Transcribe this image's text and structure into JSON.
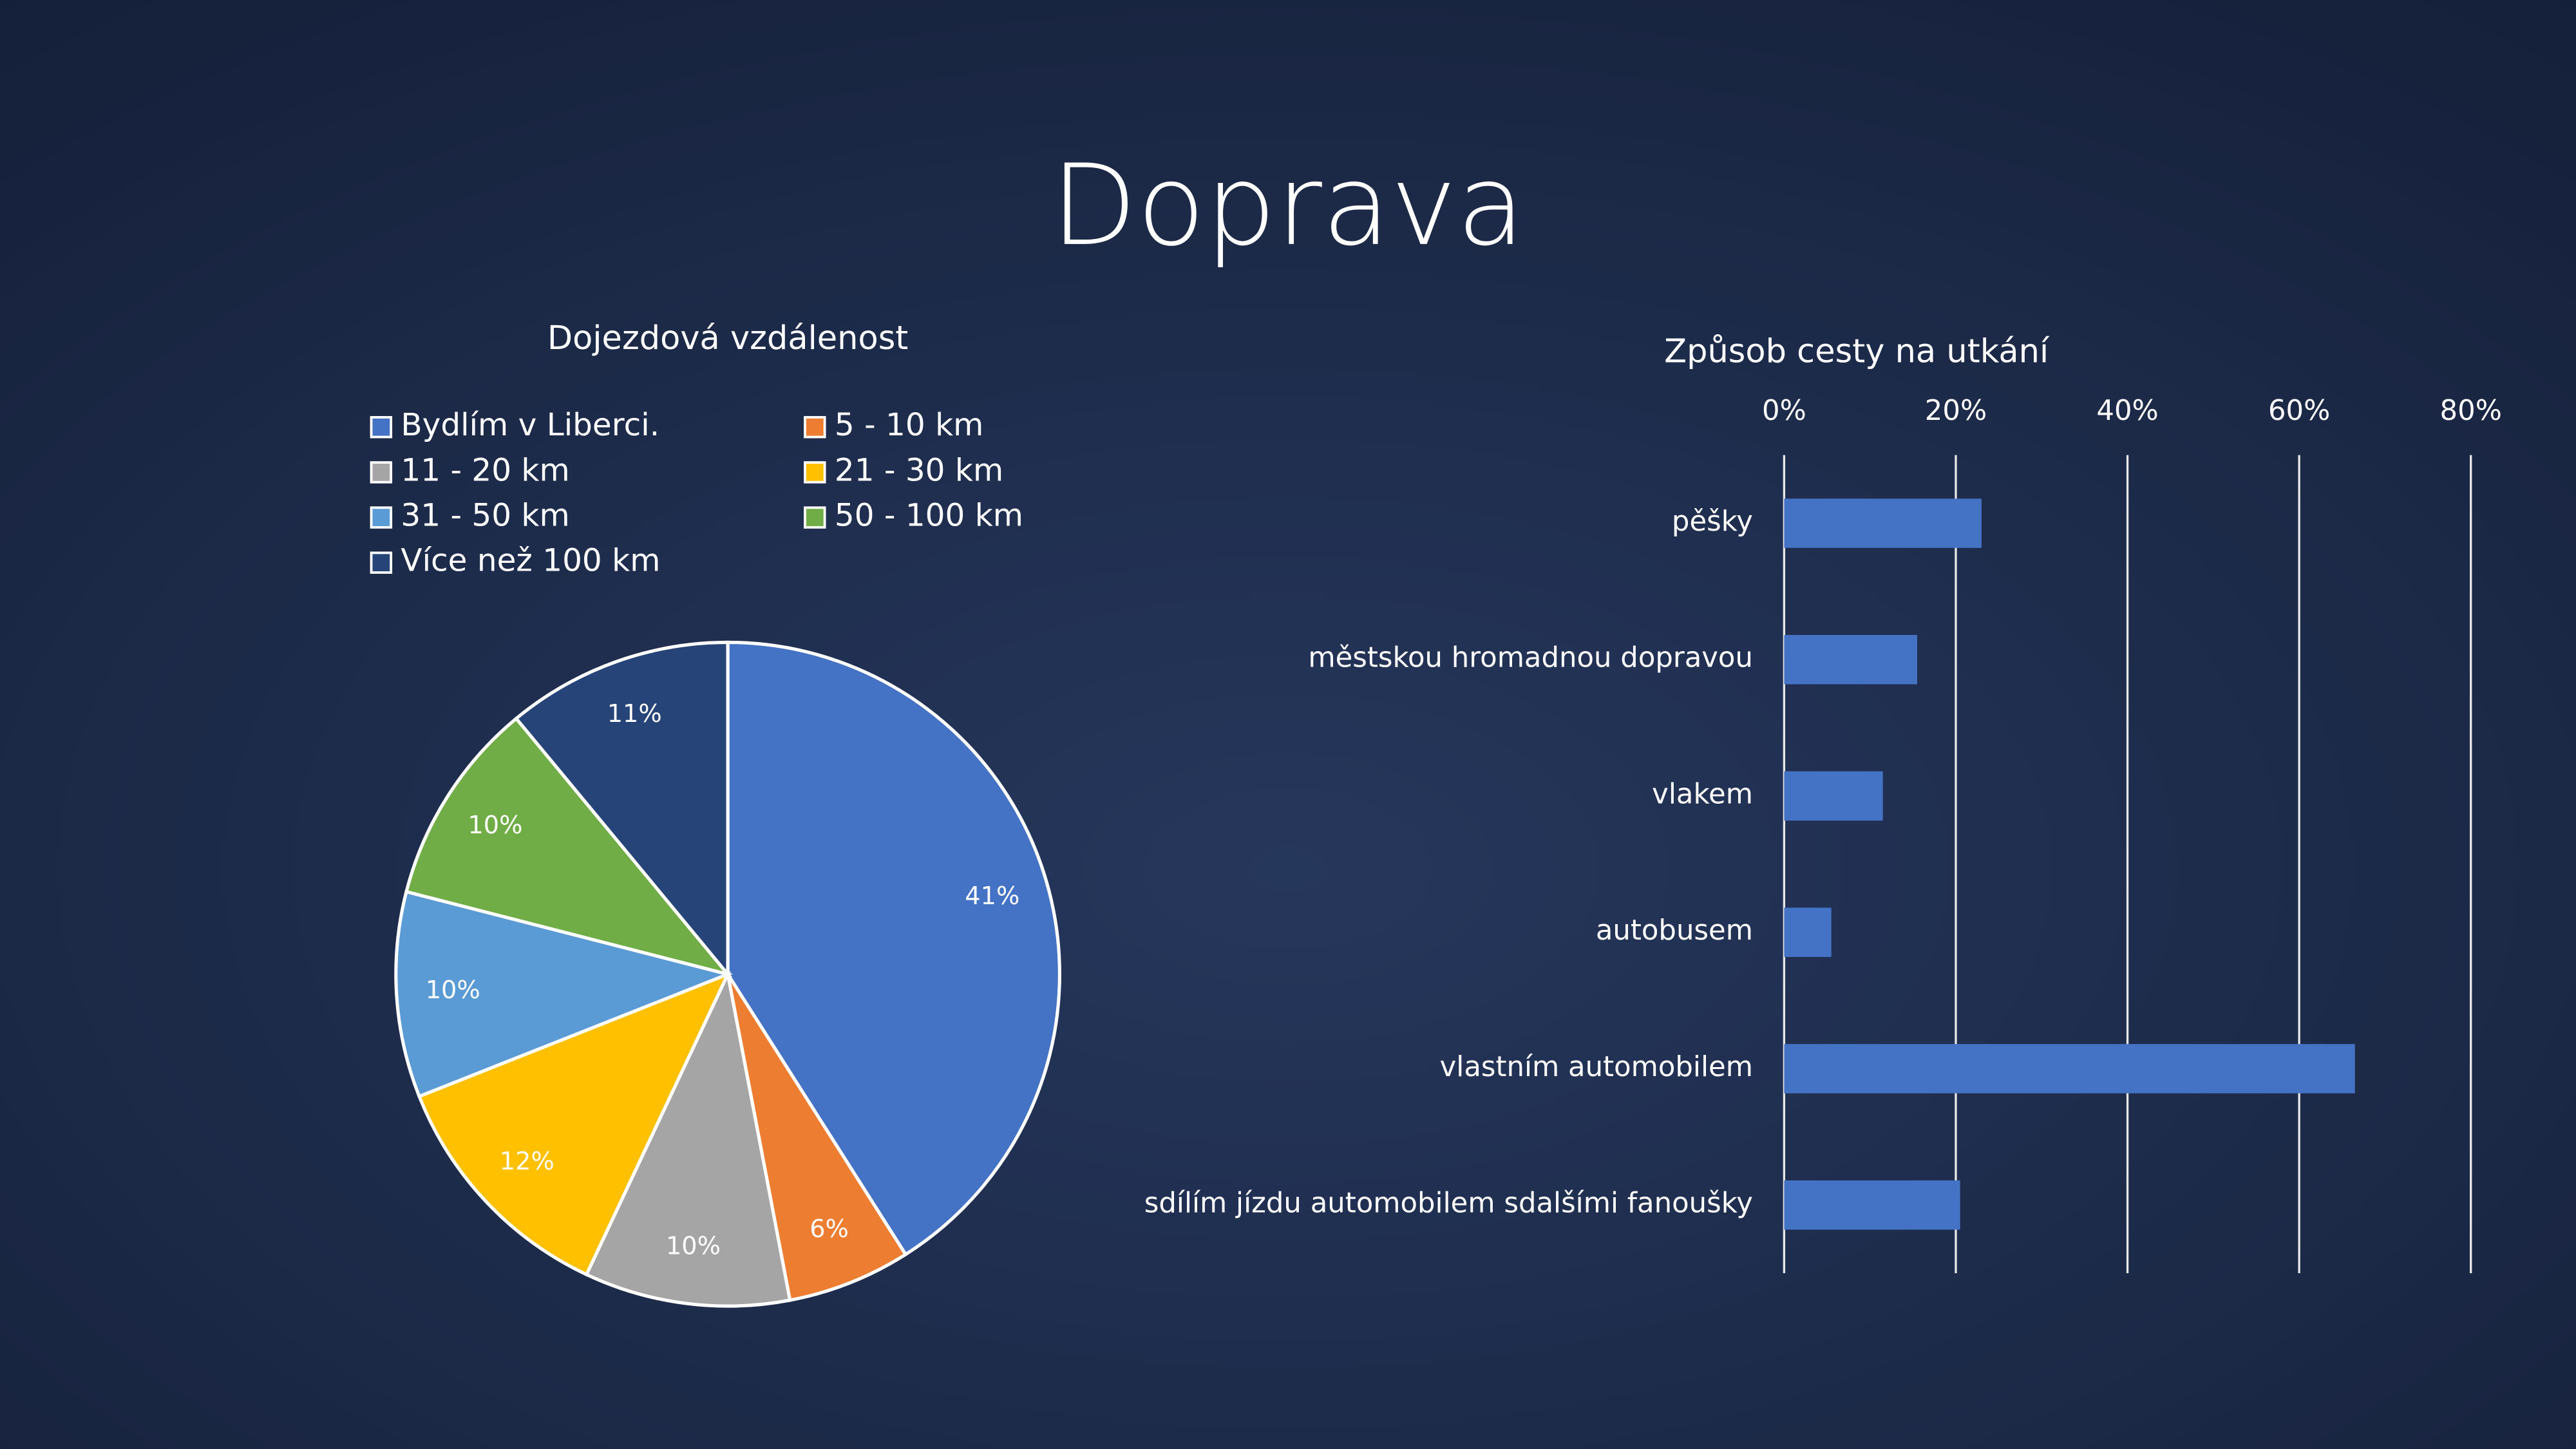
{
  "title": "Doprava",
  "chart_data": [
    {
      "type": "pie",
      "title": "Dojezdová vzdálenost",
      "categories": [
        "Bydlím v Liberci.",
        "5 - 10 km",
        "11 - 20 km",
        "21 - 30 km",
        "31 - 50 km",
        "50 - 100 km",
        "Více než 100 km"
      ],
      "values": [
        41,
        6,
        10,
        12,
        10,
        10,
        11
      ],
      "value_labels": [
        "41%",
        "6%",
        "10%",
        "12%",
        "10%",
        "10%",
        "11%"
      ],
      "colors": [
        "#4472c4",
        "#ed7d31",
        "#a5a5a5",
        "#ffc000",
        "#5b9bd5",
        "#70ad47",
        "#264478"
      ],
      "legend": "top"
    },
    {
      "type": "hbar",
      "title": "Způsob cesty na utkání",
      "categories": [
        "pěšky",
        "městskou hromadnou dopravou",
        "vlakem",
        "autobusem",
        "vlastním automobilem",
        "sdílím jízdu automobilem sdalšími fanoušky"
      ],
      "values": [
        23,
        15.5,
        11.5,
        5.5,
        66.5,
        20.5
      ],
      "color": "#4472c4",
      "xlim": [
        0,
        80
      ],
      "xticks": [
        {
          "value": 0,
          "label": "0%"
        },
        {
          "value": 20,
          "label": "20%"
        },
        {
          "value": 40,
          "label": "40%"
        },
        {
          "value": 60,
          "label": "60%"
        },
        {
          "value": 80,
          "label": "80%"
        }
      ],
      "grid": true
    }
  ]
}
